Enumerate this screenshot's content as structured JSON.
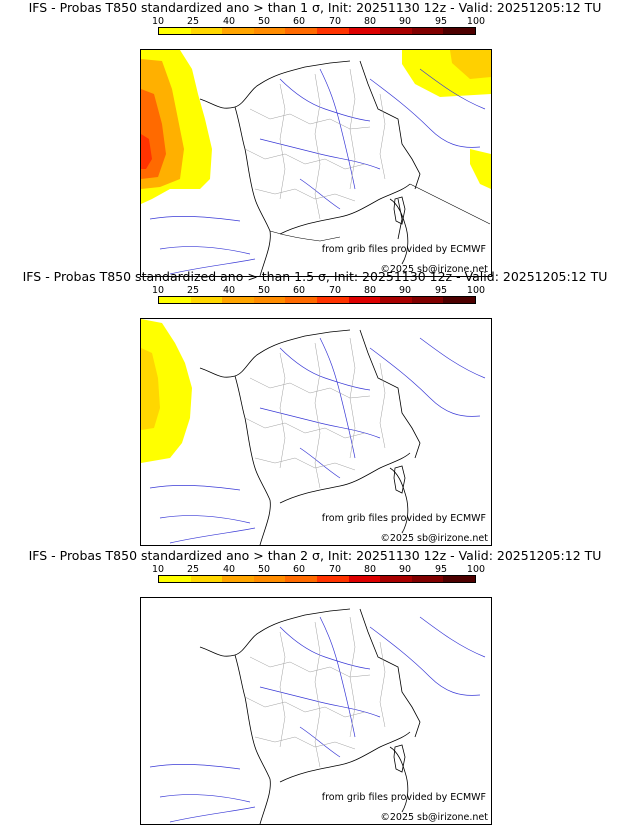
{
  "panels": [
    {
      "title": "IFS - Probas T850  standardized ano > than 1 σ, Init: 20251130 12z - Valid: 20251205:12 TU",
      "credit_source": "from grib files provided by ECMWF",
      "credit_copyright": "©2025 sb@irizone.net",
      "level": "1"
    },
    {
      "title": "IFS - Probas T850  standardized ano > than 1.5 σ, Init: 20251130 12z - Valid: 20251205:12 TU",
      "credit_source": "from grib files provided by ECMWF",
      "credit_copyright": "©2025 sb@irizone.net",
      "level": "1.5"
    },
    {
      "title": "IFS - Probas T850  standardized ano > than 2 σ, Init: 20251130 12z - Valid: 20251205:12 TU",
      "credit_source": "from grib files provided by ECMWF",
      "credit_copyright": "©2025 sb@irizone.net",
      "level": "2"
    }
  ],
  "colorbar": {
    "labels": [
      "10",
      "25",
      "40",
      "50",
      "60",
      "70",
      "80",
      "90",
      "95",
      "100"
    ],
    "colors": [
      "#ffff00",
      "#ffd700",
      "#ffa500",
      "#ff8c00",
      "#ff6a00",
      "#ff3300",
      "#dd0000",
      "#a80000",
      "#800000",
      "#4d0000"
    ]
  },
  "colors": {
    "rivers": "#3a3ad6",
    "borders": "#000000",
    "regions": "#a0a0a0",
    "prob_low": "#ffff00",
    "prob_mid": "#ffa500",
    "prob_high": "#ff3300"
  }
}
